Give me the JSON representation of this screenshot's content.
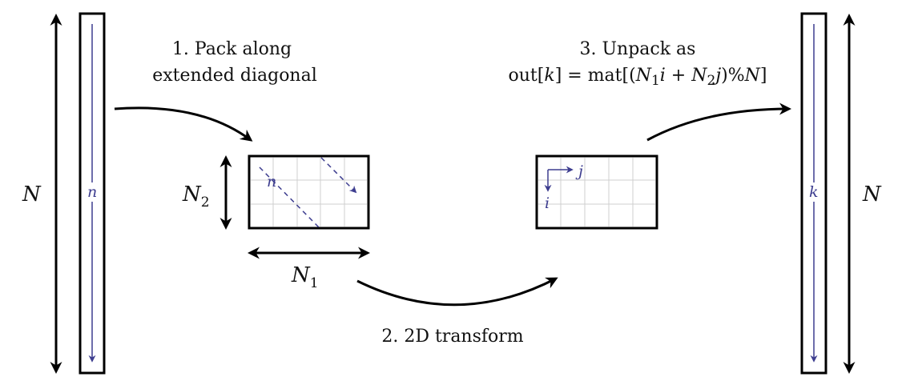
{
  "labels": {
    "n_left": "N",
    "n_right": "N",
    "input_index": "n",
    "output_index": "k",
    "n1_base": "N",
    "n1_sub": "1",
    "n2_base": "N",
    "n2_sub": "2",
    "grid_n": "n",
    "grid_i": "i",
    "grid_j": "j"
  },
  "steps": {
    "step1_line1": "1. Pack along",
    "step1_line2": "extended diagonal",
    "step2": "2. 2D transform",
    "step3_line1": "3. Unpack as",
    "step3_prefix": "out[",
    "step3_k": "k",
    "step3_mid": "] = mat[(",
    "step3_N1": "N",
    "step3_N1_sub": "1",
    "step3_i": "i",
    "step3_plus": " + ",
    "step3_N2": "N",
    "step3_N2_sub": "2",
    "step3_j": "j",
    "step3_mod": ")%",
    "step3_N": "N",
    "step3_end": "]"
  },
  "colors": {
    "accent": "#3d3d8f",
    "grid": "#cfcfcf",
    "stroke": "#000000"
  }
}
